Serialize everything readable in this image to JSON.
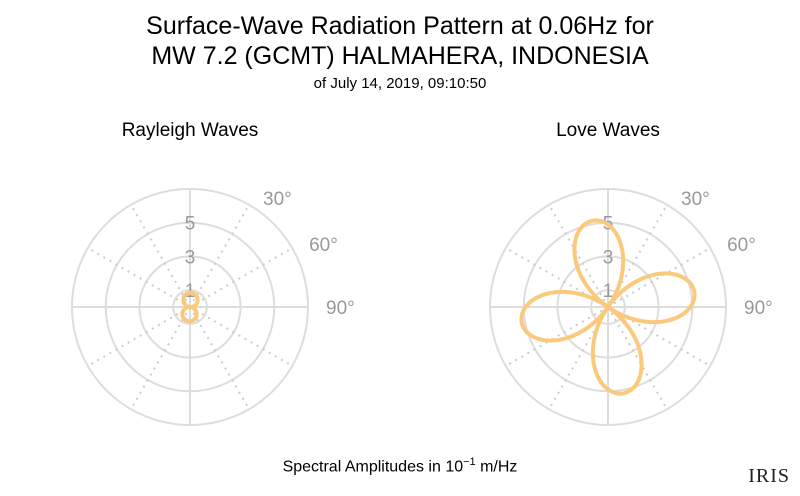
{
  "title_line1": "Surface-Wave Radiation Pattern at 0.06Hz for",
  "title_line2": "MW 7.2 (GCMT) HALMAHERA, INDONESIA",
  "title_line3": "of July 14, 2019, 09:10:50",
  "footer_prefix": "Spectral Amplitudes in 10",
  "footer_exp": "−1",
  "footer_suffix": " m/Hz",
  "logo_text": "IRIS",
  "chart_data": [
    {
      "type": "polar",
      "title": "Rayleigh Waves",
      "radial_ticks": [
        "1",
        "3",
        "5"
      ],
      "radial_tick_values": [
        1,
        3,
        5
      ],
      "angle_ticks": [
        "30°",
        "60°",
        "90°"
      ],
      "angle_tick_values": [
        30,
        60,
        90
      ],
      "rmax": 7,
      "series_color": "#fbc97b",
      "pattern": {
        "form": "two_lobe",
        "amplitude": 0.85,
        "orientation_deg": 4
      }
    },
    {
      "type": "polar",
      "title": "Love Waves",
      "radial_ticks": [
        "1",
        "3",
        "5"
      ],
      "radial_tick_values": [
        1,
        3,
        5
      ],
      "angle_ticks": [
        "30°",
        "60°",
        "90°"
      ],
      "angle_tick_values": [
        30,
        60,
        90
      ],
      "rmax": 7,
      "series_color": "#fbc97b",
      "pattern": {
        "form": "four_lobe",
        "amplitude": 5.2,
        "orientation_deg": 35
      }
    }
  ]
}
